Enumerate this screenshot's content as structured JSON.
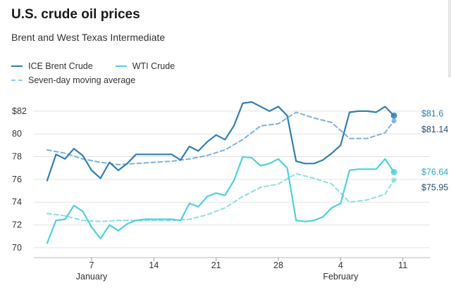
{
  "header": {
    "title": "U.S. crude oil prices",
    "subtitle": "Brent and West Texas Intermediate"
  },
  "legend": {
    "brent": "ICE Brent Crude",
    "wti": "WTI Crude",
    "ma": "Seven-day moving average"
  },
  "chart_data": {
    "type": "line",
    "title": "U.S. crude oil prices",
    "subtitle": "Brent and West Texas Intermediate",
    "xlabel": "",
    "ylabel": "",
    "x_ticks": [
      {
        "label": "7",
        "day": 7
      },
      {
        "label": "14",
        "day": 14
      },
      {
        "label": "21",
        "day": 21
      },
      {
        "label": "28",
        "day": 28
      },
      {
        "label": "4",
        "day": 35
      },
      {
        "label": "11",
        "day": 42
      }
    ],
    "month_labels": [
      {
        "label": "January",
        "day": 7
      },
      {
        "label": "February",
        "day": 35
      }
    ],
    "y_ticks": [
      "$82",
      "80",
      "78",
      "76",
      "74",
      "72",
      "70"
    ],
    "y_tick_values": [
      82,
      80,
      78,
      76,
      74,
      72,
      70
    ],
    "xlim": [
      0.5,
      44.8
    ],
    "ylim": [
      69.5,
      83.6
    ],
    "grid": true,
    "legend_position": "top-left",
    "colors": {
      "brent": "#2f7fb8",
      "wti": "#4fd0dd",
      "brent_ma": "#7fb1dd",
      "wti_ma": "#8fdde6",
      "grid": "#e2e2e2"
    },
    "series": [
      {
        "name": "ICE Brent Crude",
        "style": "solid",
        "points": [
          [
            2,
            75.9
          ],
          [
            3,
            78.2
          ],
          [
            4,
            77.8
          ],
          [
            5,
            78.7
          ],
          [
            6,
            78.1
          ],
          [
            7,
            76.8
          ],
          [
            8,
            76.1
          ],
          [
            9,
            77.5
          ],
          [
            10,
            76.8
          ],
          [
            11,
            77.4
          ],
          [
            12,
            78.2
          ],
          [
            13,
            78.2
          ],
          [
            14,
            78.2
          ],
          [
            15,
            78.2
          ],
          [
            16,
            78.2
          ],
          [
            17,
            77.7
          ],
          [
            18,
            78.9
          ],
          [
            19,
            78.5
          ],
          [
            20,
            79.3
          ],
          [
            21,
            79.9
          ],
          [
            22,
            79.5
          ],
          [
            23,
            80.7
          ],
          [
            24,
            82.7
          ],
          [
            25,
            82.8
          ],
          [
            26,
            82.4
          ],
          [
            27,
            82.0
          ],
          [
            28,
            82.4
          ],
          [
            29,
            81.6
          ],
          [
            30,
            77.6
          ],
          [
            31,
            77.4
          ],
          [
            32,
            77.4
          ],
          [
            33,
            77.7
          ],
          [
            34,
            78.3
          ],
          [
            35,
            79.0
          ],
          [
            36,
            81.9
          ],
          [
            37,
            82.0
          ],
          [
            38,
            82.0
          ],
          [
            39,
            81.9
          ],
          [
            40,
            82.4
          ],
          [
            41,
            81.6
          ]
        ]
      },
      {
        "name": "WTI Crude",
        "style": "solid",
        "points": [
          [
            2,
            70.4
          ],
          [
            3,
            72.4
          ],
          [
            4,
            72.5
          ],
          [
            5,
            73.7
          ],
          [
            6,
            73.2
          ],
          [
            7,
            71.8
          ],
          [
            8,
            70.8
          ],
          [
            9,
            72.0
          ],
          [
            10,
            71.5
          ],
          [
            11,
            72.1
          ],
          [
            12,
            72.4
          ],
          [
            13,
            72.5
          ],
          [
            14,
            72.5
          ],
          [
            15,
            72.5
          ],
          [
            16,
            72.5
          ],
          [
            17,
            72.4
          ],
          [
            18,
            73.9
          ],
          [
            19,
            73.6
          ],
          [
            20,
            74.5
          ],
          [
            21,
            74.8
          ],
          [
            22,
            74.6
          ],
          [
            23,
            75.9
          ],
          [
            24,
            78.0
          ],
          [
            25,
            77.9
          ],
          [
            26,
            77.2
          ],
          [
            27,
            77.4
          ],
          [
            28,
            77.8
          ],
          [
            29,
            77.0
          ],
          [
            30,
            72.4
          ],
          [
            31,
            72.3
          ],
          [
            32,
            72.4
          ],
          [
            33,
            72.7
          ],
          [
            34,
            73.5
          ],
          [
            35,
            73.9
          ],
          [
            36,
            76.8
          ],
          [
            37,
            76.9
          ],
          [
            38,
            76.9
          ],
          [
            39,
            76.9
          ],
          [
            40,
            77.8
          ],
          [
            41,
            76.64
          ]
        ]
      },
      {
        "name": "Brent seven-day moving average",
        "style": "dashed",
        "points": [
          [
            2,
            78.6
          ],
          [
            4,
            78.3
          ],
          [
            6,
            77.8
          ],
          [
            8,
            77.5
          ],
          [
            10,
            77.3
          ],
          [
            12,
            77.4
          ],
          [
            14,
            77.5
          ],
          [
            16,
            77.6
          ],
          [
            18,
            77.8
          ],
          [
            20,
            78.1
          ],
          [
            22,
            78.6
          ],
          [
            24,
            79.5
          ],
          [
            26,
            80.7
          ],
          [
            28,
            80.9
          ],
          [
            30,
            81.9
          ],
          [
            32,
            81.4
          ],
          [
            34,
            81.0
          ],
          [
            36,
            79.6
          ],
          [
            38,
            79.6
          ],
          [
            40,
            80.1
          ],
          [
            41,
            81.14
          ]
        ]
      },
      {
        "name": "WTI seven-day moving average",
        "style": "dashed",
        "points": [
          [
            2,
            73.0
          ],
          [
            4,
            72.8
          ],
          [
            6,
            72.4
          ],
          [
            8,
            72.3
          ],
          [
            10,
            72.4
          ],
          [
            12,
            72.4
          ],
          [
            14,
            72.4
          ],
          [
            16,
            72.4
          ],
          [
            18,
            72.5
          ],
          [
            20,
            72.9
          ],
          [
            22,
            73.5
          ],
          [
            24,
            74.5
          ],
          [
            26,
            75.3
          ],
          [
            28,
            75.6
          ],
          [
            30,
            76.5
          ],
          [
            32,
            76.1
          ],
          [
            34,
            75.6
          ],
          [
            36,
            74.0
          ],
          [
            38,
            74.2
          ],
          [
            40,
            74.7
          ],
          [
            41,
            75.95
          ]
        ]
      }
    ],
    "end_labels": [
      {
        "text": "$81.6",
        "value": 81.6,
        "series": "ICE Brent Crude"
      },
      {
        "text": "$81.14",
        "value": 81.14,
        "series": "Brent seven-day moving average"
      },
      {
        "text": "$76.64",
        "value": 76.64,
        "series": "WTI Crude"
      },
      {
        "text": "$75.95",
        "value": 75.95,
        "series": "WTI seven-day moving average"
      }
    ]
  }
}
